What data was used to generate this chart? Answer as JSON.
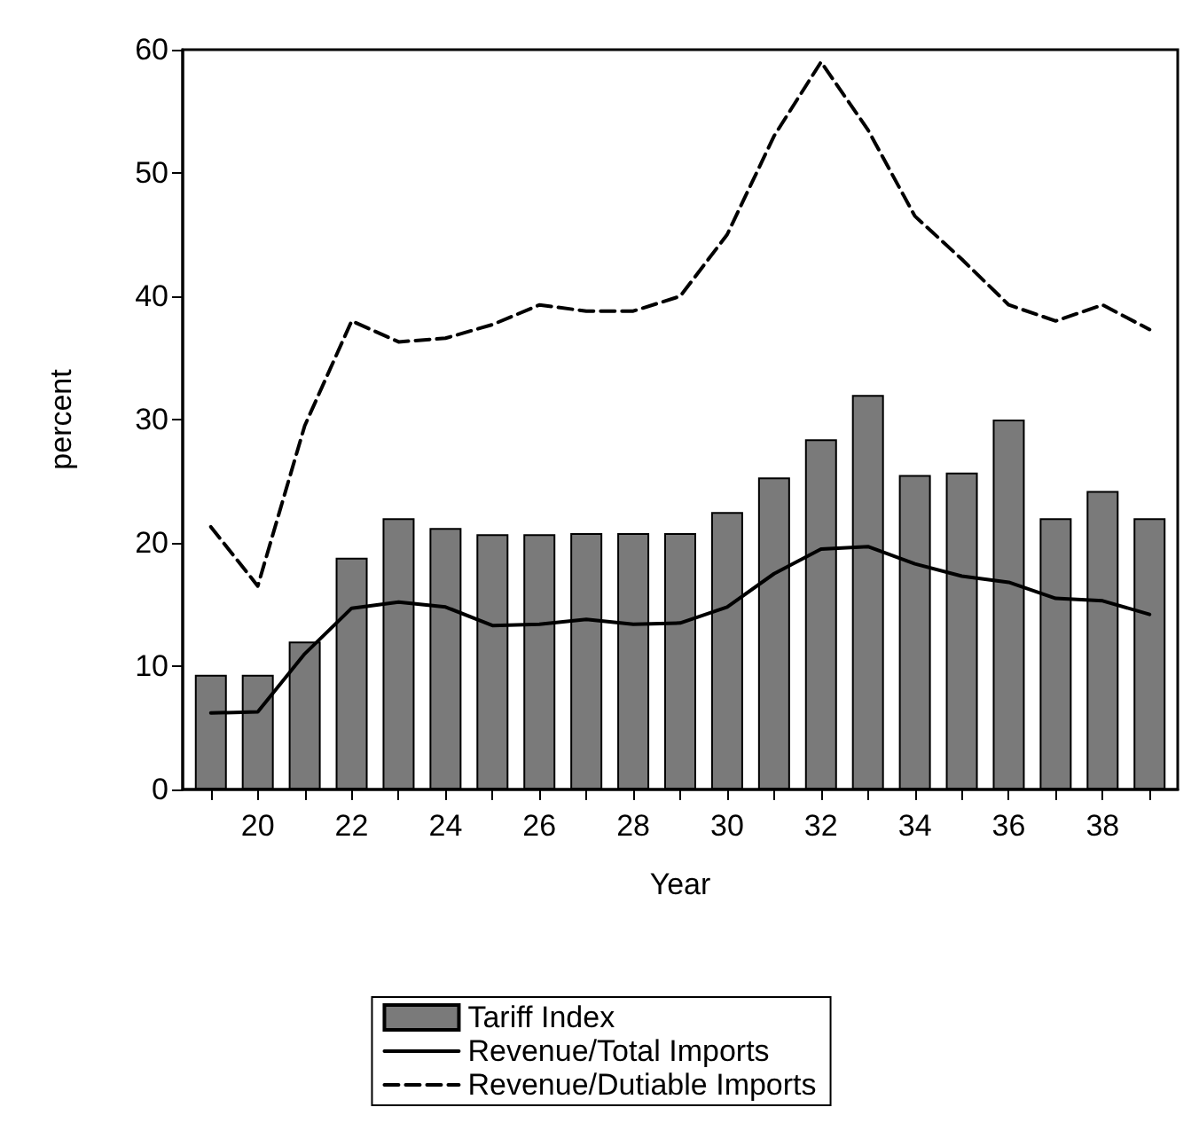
{
  "chart_data": {
    "type": "bar",
    "xlabel": "Year",
    "ylabel": "percent",
    "x": [
      19,
      20,
      21,
      22,
      23,
      24,
      25,
      26,
      27,
      28,
      29,
      30,
      31,
      32,
      33,
      34,
      35,
      36,
      37,
      38,
      39
    ],
    "series": [
      {
        "name": "Tariff Index",
        "color": "#7a7a7a",
        "values": [
          9.3,
          9.3,
          12,
          18.8,
          22,
          21.2,
          20.7,
          20.7,
          20.8,
          20.8,
          20.8,
          22.5,
          25.3,
          28.4,
          32,
          25.5,
          25.7,
          30,
          22,
          24.2,
          22
        ]
      },
      {
        "name": "Revenue/Total Imports",
        "type": "line",
        "line_style": "solid",
        "color": "#000000",
        "values": [
          6.2,
          6.3,
          11,
          14.7,
          15.2,
          14.8,
          13.3,
          13.4,
          13.8,
          13.4,
          13.5,
          14.8,
          17.5,
          19.5,
          19.7,
          18.3,
          17.3,
          16.8,
          15.5,
          15.3,
          14.2
        ]
      },
      {
        "name": "Revenue/Dutiable Imports",
        "type": "line",
        "line_style": "dashed",
        "color": "#000000",
        "values": [
          21.3,
          16.5,
          29.5,
          38,
          36.3,
          36.6,
          37.7,
          39.3,
          38.8,
          38.8,
          40,
          45,
          53,
          59,
          53.5,
          46.5,
          43,
          39.3,
          38,
          39.3,
          37.3
        ]
      }
    ],
    "xlim": [
      18.4,
      39.6
    ],
    "xticks": [
      {
        "value": 19,
        "label": null
      },
      20,
      {
        "value": 21,
        "label": null
      },
      22,
      {
        "value": 23,
        "label": null
      },
      24,
      {
        "value": 25,
        "label": null
      },
      26,
      {
        "value": 27,
        "label": null
      },
      28,
      {
        "value": 29,
        "label": null
      },
      30,
      {
        "value": 31,
        "label": null
      },
      32,
      {
        "value": 33,
        "label": null
      },
      34,
      {
        "value": 35,
        "label": null
      },
      36,
      {
        "value": 37,
        "label": null
      },
      38,
      {
        "value": 39,
        "label": null
      }
    ],
    "ylim": [
      0,
      60
    ],
    "yticks": [
      0,
      10,
      20,
      30,
      40,
      50,
      60
    ],
    "grid": false,
    "legend": "bottom",
    "marker": "none"
  }
}
